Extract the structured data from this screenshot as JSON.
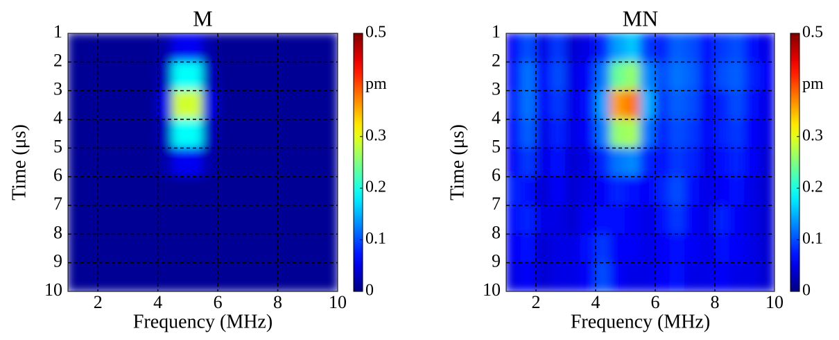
{
  "chart_data": [
    {
      "type": "heatmap",
      "title": "M",
      "xlabel": "Frequency (MHz)",
      "ylabel": "Time (μs)",
      "xlim": [
        1,
        10
      ],
      "xticks": [
        2,
        4,
        6,
        8,
        10
      ],
      "ylim": [
        10,
        1
      ],
      "yticks": [
        1,
        2,
        3,
        4,
        5,
        6,
        7,
        8,
        9,
        10
      ],
      "grid": true,
      "colormap": "jet",
      "zlim": [
        0,
        0.5
      ],
      "zticks": [
        0,
        0.1,
        0.2,
        0.3,
        0.5
      ],
      "zlabel": "pm",
      "values": [
        [
          0.01,
          0.01,
          0.01,
          0.01,
          0.01,
          0.01,
          0.02,
          0.056,
          0.056,
          0.02,
          0.01,
          0.01,
          0.01,
          0.01,
          0.01,
          0.01,
          0.01,
          0.01
        ],
        [
          0.01,
          0.01,
          0.01,
          0.01,
          0.01,
          0.01,
          0.03,
          0.19,
          0.19,
          0.03,
          0.01,
          0.01,
          0.01,
          0.01,
          0.01,
          0.01,
          0.01,
          0.01
        ],
        [
          0.01,
          0.01,
          0.01,
          0.01,
          0.01,
          0.01,
          0.05,
          0.29,
          0.29,
          0.05,
          0.01,
          0.01,
          0.01,
          0.01,
          0.01,
          0.01,
          0.01,
          0.01
        ],
        [
          0.01,
          0.01,
          0.01,
          0.01,
          0.01,
          0.01,
          0.03,
          0.19,
          0.19,
          0.03,
          0.01,
          0.01,
          0.01,
          0.01,
          0.01,
          0.01,
          0.01,
          0.01
        ],
        [
          0.01,
          0.01,
          0.01,
          0.01,
          0.01,
          0.01,
          0.02,
          0.056,
          0.056,
          0.02,
          0.01,
          0.01,
          0.01,
          0.01,
          0.01,
          0.01,
          0.01,
          0.01
        ],
        [
          0.01,
          0.01,
          0.01,
          0.01,
          0.01,
          0.01,
          0.01,
          0.01,
          0.01,
          0.01,
          0.01,
          0.01,
          0.01,
          0.01,
          0.01,
          0.01,
          0.01,
          0.01
        ],
        [
          0.01,
          0.01,
          0.01,
          0.01,
          0.01,
          0.01,
          0.01,
          0.01,
          0.01,
          0.01,
          0.01,
          0.01,
          0.01,
          0.01,
          0.01,
          0.01,
          0.01,
          0.01
        ],
        [
          0.01,
          0.01,
          0.01,
          0.01,
          0.01,
          0.01,
          0.01,
          0.01,
          0.01,
          0.01,
          0.01,
          0.01,
          0.01,
          0.01,
          0.01,
          0.01,
          0.01,
          0.01
        ],
        [
          0.01,
          0.01,
          0.01,
          0.01,
          0.01,
          0.01,
          0.01,
          0.01,
          0.01,
          0.01,
          0.01,
          0.01,
          0.01,
          0.01,
          0.01,
          0.01,
          0.01,
          0.01
        ]
      ]
    },
    {
      "type": "heatmap",
      "title": "MN",
      "xlabel": "Frequency (MHz)",
      "ylabel": "Time (μs)",
      "xlim": [
        1,
        10
      ],
      "xticks": [
        2,
        4,
        6,
        8,
        10
      ],
      "ylim": [
        10,
        1
      ],
      "yticks": [
        1,
        2,
        3,
        4,
        5,
        6,
        7,
        8,
        9,
        10
      ],
      "grid": true,
      "colormap": "jet",
      "zlim": [
        0,
        0.5
      ],
      "zticks": [
        0,
        0.1,
        0.2,
        0.3,
        0.5
      ],
      "zlabel": "pm",
      "values": [
        [
          0.06,
          0.1,
          0.05,
          0.09,
          0.04,
          0.05,
          0.08,
          0.14,
          0.16,
          0.09,
          0.08,
          0.11,
          0.1,
          0.07,
          0.09,
          0.1,
          0.07,
          0.05
        ],
        [
          0.07,
          0.12,
          0.06,
          0.1,
          0.05,
          0.06,
          0.12,
          0.24,
          0.26,
          0.13,
          0.1,
          0.12,
          0.11,
          0.07,
          0.1,
          0.11,
          0.08,
          0.06
        ],
        [
          0.08,
          0.12,
          0.06,
          0.09,
          0.05,
          0.07,
          0.14,
          0.36,
          0.38,
          0.15,
          0.09,
          0.11,
          0.1,
          0.06,
          0.08,
          0.1,
          0.07,
          0.05
        ],
        [
          0.07,
          0.11,
          0.05,
          0.08,
          0.05,
          0.06,
          0.12,
          0.26,
          0.27,
          0.12,
          0.08,
          0.1,
          0.09,
          0.06,
          0.08,
          0.09,
          0.06,
          0.05
        ],
        [
          0.06,
          0.09,
          0.05,
          0.07,
          0.04,
          0.05,
          0.08,
          0.12,
          0.13,
          0.08,
          0.07,
          0.09,
          0.08,
          0.05,
          0.07,
          0.08,
          0.06,
          0.04
        ],
        [
          0.08,
          0.07,
          0.04,
          0.06,
          0.04,
          0.05,
          0.06,
          0.08,
          0.07,
          0.06,
          0.08,
          0.1,
          0.07,
          0.05,
          0.06,
          0.07,
          0.05,
          0.04
        ],
        [
          0.07,
          0.08,
          0.05,
          0.05,
          0.04,
          0.06,
          0.07,
          0.07,
          0.06,
          0.05,
          0.07,
          0.09,
          0.06,
          0.05,
          0.08,
          0.06,
          0.05,
          0.04
        ],
        [
          0.06,
          0.07,
          0.04,
          0.05,
          0.05,
          0.07,
          0.09,
          0.06,
          0.06,
          0.05,
          0.06,
          0.07,
          0.06,
          0.05,
          0.07,
          0.06,
          0.05,
          0.04
        ],
        [
          0.05,
          0.06,
          0.04,
          0.05,
          0.05,
          0.06,
          0.1,
          0.06,
          0.05,
          0.05,
          0.06,
          0.07,
          0.05,
          0.05,
          0.06,
          0.05,
          0.05,
          0.04
        ]
      ]
    }
  ]
}
